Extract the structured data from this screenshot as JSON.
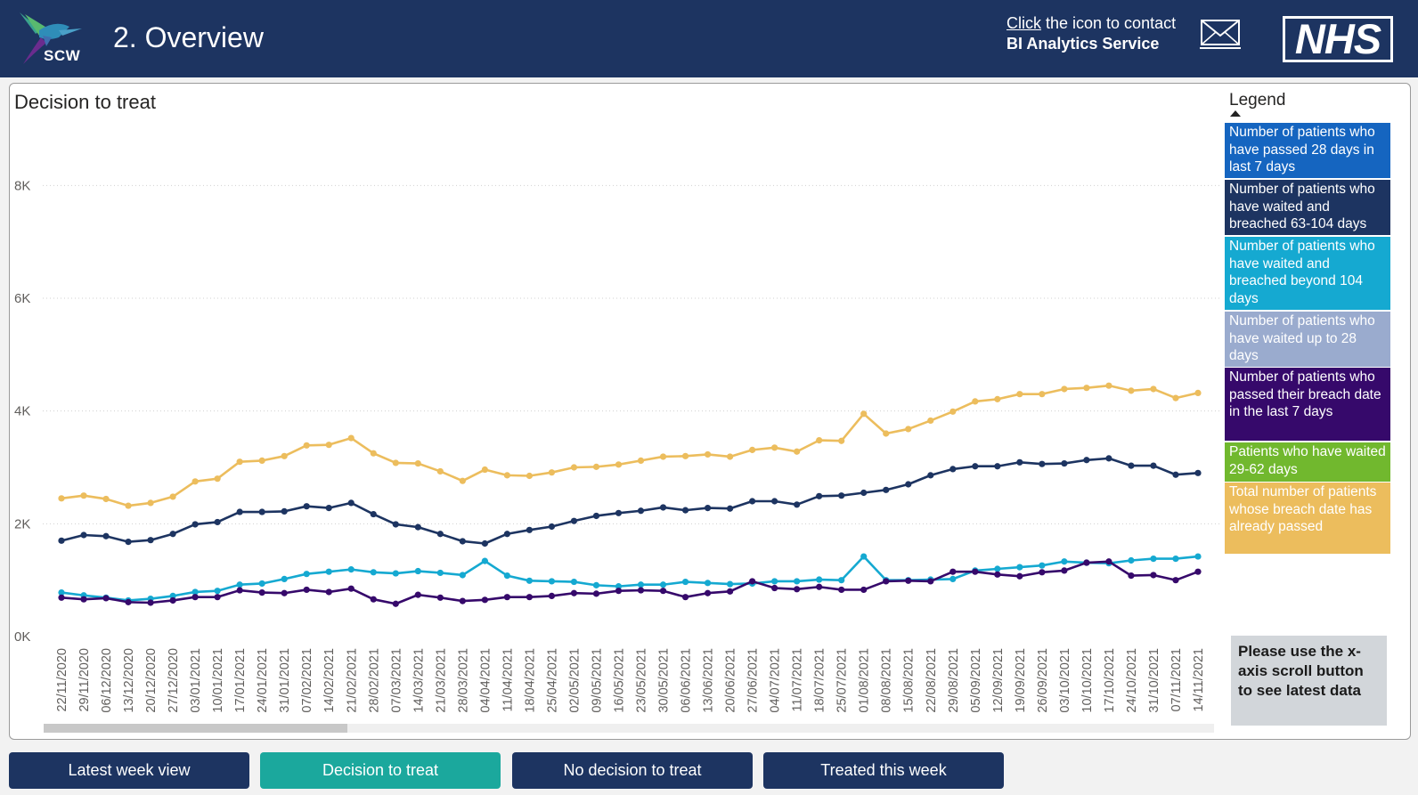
{
  "header": {
    "logo_text": "SCW",
    "title": "2. Overview",
    "contact_click": "Click",
    "contact_rest": " the icon to contact",
    "contact_service": "BI Analytics Service",
    "nhs_logo_text": "NHS",
    "icons": {
      "logo": "hummingbird-logo-icon",
      "mail": "mail-icon"
    },
    "background_color": "#1d3461"
  },
  "chart_title": "Decision to treat",
  "legend": {
    "title": "Legend",
    "items": [
      {
        "label": "Number of patients who have passed 28 days in last 7 days",
        "color": "#1565c0"
      },
      {
        "label": "Number of patients who have waited and breached 63-104 days",
        "color": "#1d3461"
      },
      {
        "label": "Number of patients who have waited and breached beyond 104 days",
        "color": "#15a9d1"
      },
      {
        "label": "Number of patients who have waited up to 28 days",
        "color": "#9aabce"
      },
      {
        "label": "Number of patients who passed their breach date in the last 7 days",
        "color": "#36096b"
      },
      {
        "label": "Patients who have waited 29-62 days",
        "color": "#71b82e"
      },
      {
        "label": "Total number of patients whose breach date has already passed",
        "color": "#ecbd5d"
      }
    ]
  },
  "note": "Please use the x-axis scroll button to see latest data",
  "nav_buttons": [
    {
      "label": "Latest week view",
      "color": "#1d3461"
    },
    {
      "label": "Decision to treat",
      "color": "#1ba89d"
    },
    {
      "label": "No decision to treat",
      "color": "#1d3461"
    },
    {
      "label": "Treated this week",
      "color": "#1d3461"
    }
  ],
  "chart_data": {
    "type": "line",
    "title": "Decision to treat",
    "xlabel": "",
    "ylabel": "",
    "ylim": [
      0,
      9000
    ],
    "yticks": [
      0,
      2000,
      4000,
      6000,
      8000
    ],
    "ytick_labels": [
      "0K",
      "2K",
      "4K",
      "6K",
      "8K"
    ],
    "grid": true,
    "legend_position": "right",
    "x": [
      "22/11/2020",
      "29/11/2020",
      "06/12/2020",
      "13/12/2020",
      "20/12/2020",
      "27/12/2020",
      "03/01/2021",
      "10/01/2021",
      "17/01/2021",
      "24/01/2021",
      "31/01/2021",
      "07/02/2021",
      "14/02/2021",
      "21/02/2021",
      "28/02/2021",
      "07/03/2021",
      "14/03/2021",
      "21/03/2021",
      "28/03/2021",
      "04/04/2021",
      "11/04/2021",
      "18/04/2021",
      "25/04/2021",
      "02/05/2021",
      "09/05/2021",
      "16/05/2021",
      "23/05/2021",
      "30/05/2021",
      "06/06/2021",
      "13/06/2021",
      "20/06/2021",
      "27/06/2021",
      "04/07/2021",
      "11/07/2021",
      "18/07/2021",
      "25/07/2021",
      "01/08/2021",
      "08/08/2021",
      "15/08/2021",
      "22/08/2021",
      "29/08/2021",
      "05/09/2021",
      "12/09/2021",
      "19/09/2021",
      "26/09/2021",
      "03/10/2021",
      "10/10/2021",
      "17/10/2021",
      "24/10/2021",
      "31/10/2021",
      "07/11/2021",
      "14/11/2021"
    ],
    "series": [
      {
        "name": "Total number of patients whose breach date has already passed",
        "color": "#ecbd5d",
        "values": [
          2450,
          2500,
          2440,
          2320,
          2370,
          2480,
          2750,
          2800,
          3100,
          3120,
          3200,
          3390,
          3400,
          3520,
          3250,
          3080,
          3070,
          2930,
          2760,
          2960,
          2860,
          2850,
          2910,
          3000,
          3010,
          3050,
          3120,
          3190,
          3200,
          3230,
          3190,
          3310,
          3350,
          3280,
          3480,
          3470,
          3950,
          3600,
          3680,
          3830,
          3990,
          4170,
          4210,
          4300,
          4300,
          4390,
          4410,
          4450,
          4360,
          4390,
          4230,
          4320
        ]
      },
      {
        "name": "Number of patients who have waited and breached 63-104 days",
        "color": "#1d3461",
        "values": [
          1700,
          1800,
          1780,
          1680,
          1710,
          1820,
          1990,
          2030,
          2210,
          2210,
          2220,
          2310,
          2280,
          2370,
          2170,
          1990,
          1940,
          1820,
          1690,
          1650,
          1820,
          1890,
          1950,
          2050,
          2140,
          2190,
          2230,
          2290,
          2240,
          2280,
          2270,
          2400,
          2400,
          2340,
          2490,
          2500,
          2550,
          2600,
          2700,
          2860,
          2970,
          3020,
          3020,
          3090,
          3060,
          3070,
          3130,
          3160,
          3030,
          3030,
          2870,
          2900
        ]
      },
      {
        "name": "Number of patients who have waited and breached beyond 104 days",
        "color": "#15a9d1",
        "values": [
          780,
          730,
          690,
          640,
          670,
          720,
          790,
          810,
          920,
          940,
          1020,
          1110,
          1150,
          1190,
          1140,
          1120,
          1160,
          1130,
          1090,
          1340,
          1080,
          990,
          980,
          970,
          910,
          890,
          920,
          920,
          970,
          950,
          930,
          940,
          980,
          980,
          1010,
          1000,
          1420,
          1000,
          1000,
          1010,
          1020,
          1170,
          1200,
          1230,
          1260,
          1330,
          1310,
          1300,
          1350,
          1380,
          1380,
          1420
        ]
      },
      {
        "name": "Number of patients who passed their breach date in the last 7 days",
        "color": "#36096b",
        "values": [
          690,
          660,
          680,
          610,
          600,
          640,
          700,
          700,
          820,
          780,
          770,
          830,
          790,
          850,
          660,
          580,
          740,
          690,
          630,
          650,
          700,
          700,
          720,
          770,
          760,
          810,
          820,
          810,
          700,
          770,
          800,
          980,
          860,
          840,
          880,
          830,
          830,
          980,
          990,
          980,
          1150,
          1150,
          1100,
          1070,
          1140,
          1170,
          1310,
          1330,
          1080,
          1090,
          1000,
          1150
        ]
      }
    ]
  }
}
